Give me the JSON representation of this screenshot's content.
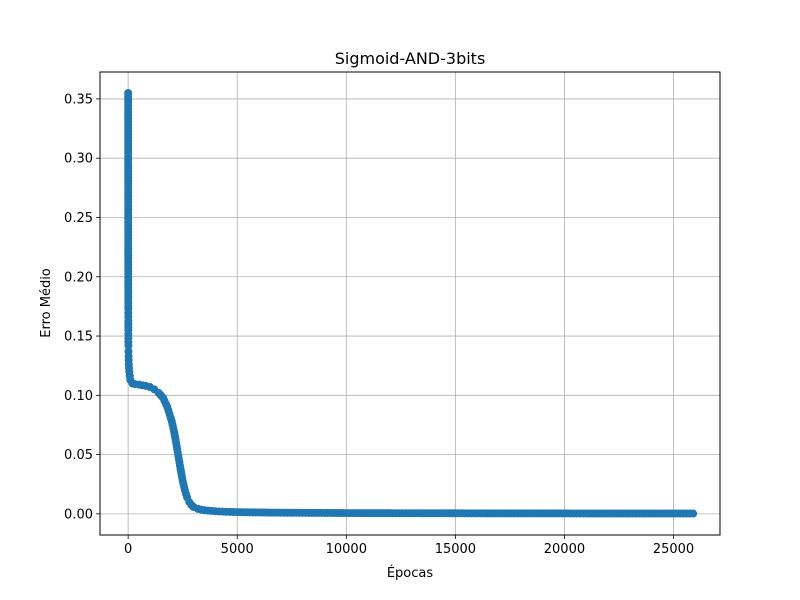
{
  "chart_data": {
    "type": "line",
    "title": "Sigmoid-AND-3bits",
    "xlabel": "Épocas",
    "ylabel": "Erro Médio",
    "xlim": [
      -1290,
      27130
    ],
    "ylim": [
      -0.0178,
      0.3727
    ],
    "xticks": [
      0,
      5000,
      10000,
      15000,
      20000,
      25000
    ],
    "xtick_labels": [
      "0",
      "5000",
      "10000",
      "15000",
      "20000",
      "25000"
    ],
    "yticks": [
      0.0,
      0.05,
      0.1,
      0.15,
      0.2,
      0.25,
      0.3,
      0.35
    ],
    "ytick_labels": [
      "0.00",
      "0.05",
      "0.10",
      "0.15",
      "0.20",
      "0.25",
      "0.30",
      "0.35"
    ],
    "grid": true,
    "marker": "circle",
    "series_color": "#1f77b4",
    "series": [
      {
        "x": [
          0,
          1,
          2,
          3,
          4,
          5,
          6,
          7,
          8,
          9,
          10,
          12,
          15,
          20,
          30,
          50,
          100,
          200,
          300,
          500,
          800,
          1000,
          1200,
          1400,
          1600,
          1800,
          2000,
          2100,
          2200,
          2300,
          2400,
          2500,
          2600,
          2700,
          2800,
          2900,
          3000,
          3200,
          3500,
          4000,
          4500,
          5000,
          6000,
          7000,
          8000,
          9000,
          10000,
          12000,
          15000,
          18000,
          20000,
          22000,
          24000,
          25000,
          25900
        ],
        "y": [
          0.355,
          0.312,
          0.276,
          0.246,
          0.221,
          0.202,
          0.186,
          0.173,
          0.163,
          0.155,
          0.148,
          0.142,
          0.137,
          0.133,
          0.126,
          0.12,
          0.113,
          0.11,
          0.1095,
          0.109,
          0.108,
          0.107,
          0.105,
          0.102,
          0.098,
          0.09,
          0.078,
          0.07,
          0.06,
          0.049,
          0.038,
          0.028,
          0.02,
          0.014,
          0.01,
          0.0075,
          0.0058,
          0.0042,
          0.0031,
          0.0022,
          0.0018,
          0.0015,
          0.0012,
          0.001,
          0.0009,
          0.0008,
          0.0007,
          0.0006,
          0.0005,
          0.0004,
          0.0004,
          0.0003,
          0.0003,
          0.0003,
          0.0003
        ]
      }
    ]
  }
}
